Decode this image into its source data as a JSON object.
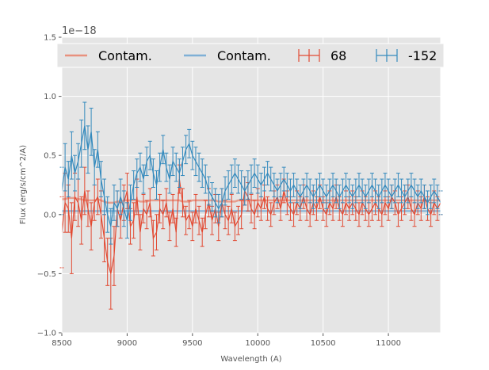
{
  "chart_data": {
    "type": "line",
    "title": "",
    "xlabel": "Wavelength (A)",
    "ylabel": "Flux (erg/s/cm^2/A)",
    "offset_label": "1e−18",
    "xlim": [
      8500,
      11400
    ],
    "ylim": [
      -1.0,
      1.5
    ],
    "y_scale_exponent": -18,
    "xticks": [
      8500,
      9000,
      9500,
      10000,
      10500,
      11000
    ],
    "yticks": [
      -1.0,
      -0.5,
      0.0,
      0.5,
      1.0,
      1.5
    ],
    "xtick_labels": [
      "8500",
      "9000",
      "9500",
      "10000",
      "10500",
      "11000"
    ],
    "ytick_labels": [
      "−1.0",
      "−0.5",
      "0.0",
      "0.5",
      "1.0",
      "1.5"
    ],
    "grid": true,
    "legend_position": "top",
    "x_start": 8500,
    "x_step": 25,
    "series": [
      {
        "name": "68",
        "legend_label": "68",
        "kind": "errorbar",
        "color": "#E24A33",
        "values": [
          -0.15,
          0.1,
          0.05,
          -0.2,
          0.15,
          0.1,
          -0.05,
          0.2,
          0.05,
          -0.1,
          0.1,
          0.15,
          0.0,
          -0.2,
          -0.4,
          -0.5,
          -0.35,
          0.05,
          -0.05,
          0.1,
          0.2,
          -0.1,
          -0.05,
          0.15,
          -0.15,
          0.05,
          0.0,
          0.1,
          -0.2,
          -0.15,
          0.05,
          0.0,
          0.1,
          -0.1,
          0.05,
          -0.15,
          0.3,
          0.1,
          -0.05,
          0.0,
          -0.1,
          0.05,
          -0.05,
          -0.15,
          0.0,
          0.1,
          -0.05,
          0.05,
          -0.1,
          0.1,
          0.0,
          -0.05,
          0.05,
          -0.1,
          -0.05,
          0.0,
          0.2,
          0.15,
          0.05,
          0.0,
          0.1,
          0.05,
          0.15,
          0.05,
          0.0,
          0.1,
          0.15,
          0.05,
          0.2,
          0.1,
          0.05,
          0.0,
          0.1,
          0.05,
          0.15,
          0.05,
          0.0,
          0.1,
          0.05,
          0.15,
          0.05,
          0.0,
          0.1,
          0.05,
          0.15,
          0.05,
          0.0,
          0.1,
          0.05,
          0.1,
          0.05,
          0.0,
          0.1,
          0.05,
          0.0,
          0.05,
          0.1,
          0.05,
          0.0,
          0.1,
          0.05,
          0.15,
          0.1,
          0.0,
          0.05,
          0.1,
          0.15,
          0.05,
          0.0,
          0.1,
          0.05,
          0.15,
          0.05,
          0.0,
          0.1,
          0.05,
          0.1
        ],
        "errors": [
          0.3,
          0.25,
          0.2,
          0.3,
          0.2,
          0.2,
          0.2,
          0.2,
          0.15,
          0.2,
          0.15,
          0.15,
          0.2,
          0.2,
          0.2,
          0.3,
          0.25,
          0.15,
          0.15,
          0.15,
          0.15,
          0.15,
          0.15,
          0.15,
          0.15,
          0.12,
          0.12,
          0.12,
          0.15,
          0.15,
          0.12,
          0.12,
          0.12,
          0.12,
          0.12,
          0.12,
          0.12,
          0.12,
          0.12,
          0.12,
          0.12,
          0.12,
          0.12,
          0.12,
          0.12,
          0.12,
          0.12,
          0.12,
          0.12,
          0.12,
          0.12,
          0.12,
          0.12,
          0.12,
          0.12,
          0.12,
          0.12,
          0.12,
          0.12,
          0.12,
          0.12,
          0.1,
          0.1,
          0.1,
          0.1,
          0.1,
          0.1,
          0.1,
          0.1,
          0.1,
          0.1,
          0.1,
          0.1,
          0.1,
          0.1,
          0.1,
          0.1,
          0.1,
          0.1,
          0.1,
          0.1,
          0.1,
          0.1,
          0.1,
          0.1,
          0.1,
          0.1,
          0.1,
          0.1,
          0.1,
          0.1,
          0.1,
          0.1,
          0.1,
          0.1,
          0.1,
          0.1,
          0.1,
          0.1,
          0.1,
          0.1,
          0.1,
          0.1,
          0.1,
          0.1,
          0.1,
          0.1,
          0.1,
          0.1,
          0.1,
          0.1,
          0.1,
          0.1,
          0.1,
          0.1,
          0.1,
          0.1
        ],
        "contam_values": [
          0.13,
          0.13,
          0.14,
          0.14,
          0.14,
          0.13,
          0.13,
          0.12,
          0.12,
          0.12,
          0.12,
          0.13,
          0.12,
          0.11,
          0.1,
          0.1,
          0.1,
          0.11,
          0.11,
          0.12,
          0.12,
          0.12,
          0.12,
          0.12,
          0.11,
          0.11,
          0.11,
          0.12,
          0.12,
          0.12,
          0.12,
          0.12,
          0.12,
          0.12,
          0.12,
          0.12,
          0.12,
          0.11,
          0.11,
          0.11,
          0.12,
          0.12,
          0.12,
          0.12,
          0.12,
          0.12,
          0.12,
          0.12,
          0.11,
          0.11,
          0.11,
          0.11,
          0.11,
          0.11,
          0.12,
          0.12,
          0.12,
          0.12,
          0.12,
          0.12,
          0.12,
          0.12,
          0.12,
          0.12,
          0.12,
          0.12,
          0.12,
          0.12,
          0.12,
          0.12,
          0.12,
          0.12,
          0.12,
          0.12,
          0.12,
          0.12,
          0.12,
          0.12,
          0.12,
          0.12,
          0.12,
          0.12,
          0.12,
          0.12,
          0.12,
          0.12,
          0.12,
          0.12,
          0.12,
          0.12,
          0.12,
          0.12,
          0.12,
          0.12,
          0.12,
          0.12,
          0.12,
          0.12,
          0.12,
          0.12,
          0.12,
          0.12,
          0.12,
          0.12,
          0.12,
          0.12,
          0.12,
          0.12,
          0.12,
          0.12,
          0.12,
          0.12,
          0.12,
          0.12,
          0.12,
          0.12,
          0.12
        ],
        "contam_legend_label": "Contam.",
        "contam_color": "#E8917E"
      },
      {
        "name": "-152",
        "legend_label": "-152",
        "kind": "errorbar",
        "color": "#348ABD",
        "values": [
          0.2,
          0.4,
          0.3,
          0.5,
          0.35,
          0.45,
          0.6,
          0.75,
          0.55,
          0.7,
          0.4,
          0.55,
          0.3,
          0.15,
          0.0,
          -0.1,
          0.1,
          0.05,
          0.15,
          0.05,
          -0.05,
          0.1,
          0.25,
          0.35,
          0.4,
          0.3,
          0.45,
          0.5,
          0.35,
          0.25,
          0.4,
          0.55,
          0.4,
          0.3,
          0.45,
          0.4,
          0.35,
          0.45,
          0.55,
          0.6,
          0.5,
          0.45,
          0.4,
          0.35,
          0.3,
          0.2,
          0.15,
          0.1,
          0.05,
          0.1,
          0.2,
          0.25,
          0.3,
          0.35,
          0.3,
          0.25,
          0.2,
          0.25,
          0.3,
          0.35,
          0.3,
          0.25,
          0.3,
          0.35,
          0.3,
          0.25,
          0.2,
          0.25,
          0.3,
          0.25,
          0.2,
          0.25,
          0.2,
          0.15,
          0.2,
          0.25,
          0.2,
          0.15,
          0.2,
          0.25,
          0.2,
          0.15,
          0.2,
          0.25,
          0.2,
          0.15,
          0.2,
          0.25,
          0.2,
          0.15,
          0.2,
          0.25,
          0.2,
          0.15,
          0.2,
          0.25,
          0.2,
          0.15,
          0.2,
          0.25,
          0.2,
          0.15,
          0.2,
          0.25,
          0.2,
          0.15,
          0.2,
          0.25,
          0.2,
          0.15,
          0.2,
          0.15,
          0.1,
          0.15,
          0.2,
          0.15,
          0.1
        ],
        "errors": [
          0.2,
          0.2,
          0.15,
          0.2,
          0.15,
          0.15,
          0.2,
          0.2,
          0.2,
          0.2,
          0.15,
          0.15,
          0.15,
          0.15,
          0.15,
          0.15,
          0.15,
          0.15,
          0.15,
          0.15,
          0.15,
          0.15,
          0.12,
          0.12,
          0.12,
          0.12,
          0.12,
          0.12,
          0.12,
          0.12,
          0.12,
          0.12,
          0.12,
          0.12,
          0.12,
          0.12,
          0.12,
          0.12,
          0.12,
          0.12,
          0.12,
          0.12,
          0.12,
          0.12,
          0.12,
          0.12,
          0.12,
          0.12,
          0.12,
          0.12,
          0.12,
          0.12,
          0.12,
          0.12,
          0.12,
          0.12,
          0.12,
          0.12,
          0.12,
          0.12,
          0.12,
          0.1,
          0.1,
          0.1,
          0.1,
          0.1,
          0.1,
          0.1,
          0.1,
          0.1,
          0.1,
          0.1,
          0.1,
          0.1,
          0.1,
          0.1,
          0.1,
          0.1,
          0.1,
          0.1,
          0.1,
          0.1,
          0.1,
          0.1,
          0.1,
          0.1,
          0.1,
          0.1,
          0.1,
          0.1,
          0.1,
          0.1,
          0.1,
          0.1,
          0.1,
          0.1,
          0.1,
          0.1,
          0.1,
          0.1,
          0.1,
          0.1,
          0.1,
          0.1,
          0.1,
          0.1,
          0.1,
          0.1,
          0.1,
          0.1,
          0.1,
          0.1,
          0.1,
          0.1,
          0.1,
          0.1,
          0.1
        ],
        "contam_values": [
          0.03,
          0.03,
          0.03,
          0.03,
          0.03,
          0.03,
          0.03,
          0.03,
          0.03,
          0.03,
          0.03,
          0.03,
          0.03,
          0.03,
          0.03,
          0.03,
          0.03,
          0.03,
          0.03,
          0.03,
          0.03,
          0.03,
          0.03,
          0.03,
          0.03,
          0.03,
          0.03,
          0.03,
          0.03,
          0.03,
          0.03,
          0.03,
          0.03,
          0.03,
          0.03,
          0.03,
          0.03,
          0.03,
          0.03,
          0.03,
          0.03,
          0.03,
          0.03,
          0.03,
          0.03,
          0.03,
          0.03,
          0.03,
          0.03,
          0.03,
          0.03,
          0.03,
          0.03,
          0.03,
          0.03,
          0.03,
          0.03,
          0.03,
          0.03,
          0.03,
          0.03,
          0.03,
          0.03,
          0.03,
          0.03,
          0.03,
          0.03,
          0.03,
          0.03,
          0.03,
          0.03,
          0.03,
          0.03,
          0.03,
          0.03,
          0.03,
          0.03,
          0.03,
          0.03,
          0.03,
          0.03,
          0.03,
          0.03,
          0.03,
          0.03,
          0.03,
          0.03,
          0.03,
          0.03,
          0.03,
          0.03,
          0.03,
          0.03,
          0.03,
          0.03,
          0.03,
          0.03,
          0.03,
          0.03,
          0.03,
          0.03,
          0.03,
          0.03,
          0.03,
          0.03,
          0.03,
          0.03,
          0.03,
          0.03,
          0.03,
          0.03,
          0.03,
          0.03,
          0.03,
          0.03,
          0.03,
          0.03
        ],
        "contam_legend_label": "Contam.",
        "contam_color": "#7FB0D6"
      }
    ],
    "legend_entries": [
      {
        "label": "Contam.",
        "color": "#E8917E",
        "kind": "line"
      },
      {
        "label": "Contam.",
        "color": "#7FB0D6",
        "kind": "line"
      },
      {
        "label": "68",
        "color": "#E24A33",
        "kind": "errorbar"
      },
      {
        "label": "-152",
        "color": "#348ABD",
        "kind": "errorbar"
      }
    ]
  }
}
